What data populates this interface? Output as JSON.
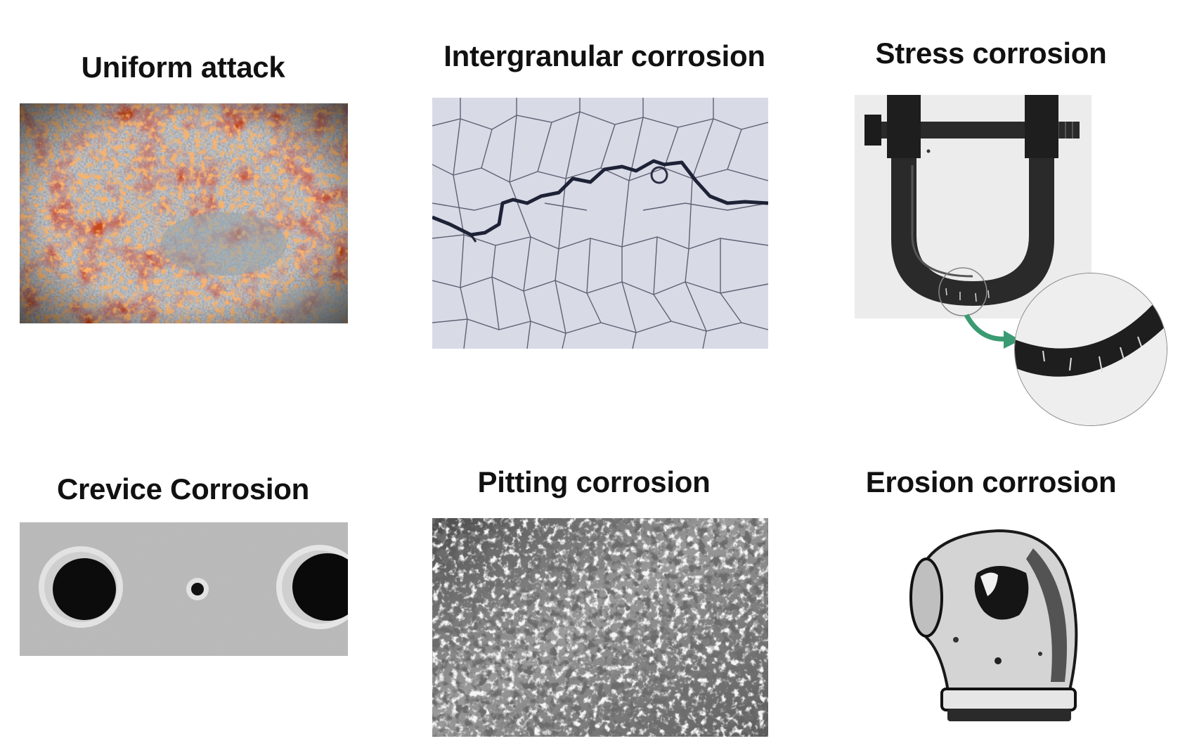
{
  "panels": [
    {
      "id": "uniform",
      "label": "Uniform attack"
    },
    {
      "id": "intergranular",
      "label": "Intergranular corrosion"
    },
    {
      "id": "stress",
      "label": "Stress corrosion"
    },
    {
      "id": "crevice",
      "label": "Crevice Corrosion"
    },
    {
      "id": "pitting",
      "label": "Pitting corrosion"
    },
    {
      "id": "erosion",
      "label": "Erosion corrosion"
    }
  ],
  "colors": {
    "rust": "#c8491a",
    "rust_bright": "#e8661f",
    "steel_gray": "#7d8a92",
    "callout_arrow": "#3a9a72"
  }
}
